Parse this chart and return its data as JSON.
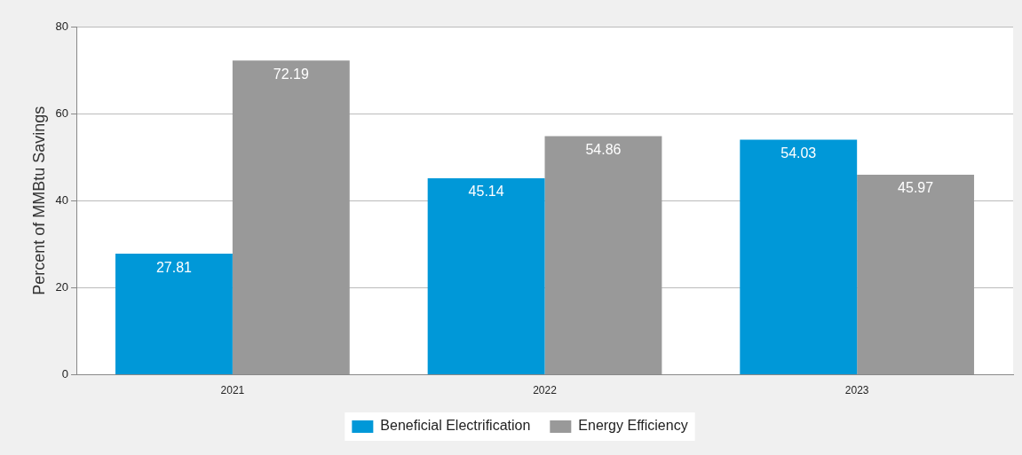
{
  "chart_data": {
    "type": "bar",
    "ylabel": "Percent of MMBtu Savings",
    "categories": [
      "2021",
      "2022",
      "2023"
    ],
    "series": [
      {
        "name": "Beneficial Electrification",
        "color": "#0098d8",
        "values": [
          27.81,
          45.14,
          54.03
        ]
      },
      {
        "name": "Energy Efficiency",
        "color": "#999999",
        "values": [
          72.19,
          54.86,
          45.97
        ]
      }
    ],
    "ylim": [
      0,
      80
    ],
    "yticks": [
      0,
      20,
      40,
      60,
      80
    ],
    "grid": "y",
    "legend": "bottom",
    "data_labels": true
  }
}
